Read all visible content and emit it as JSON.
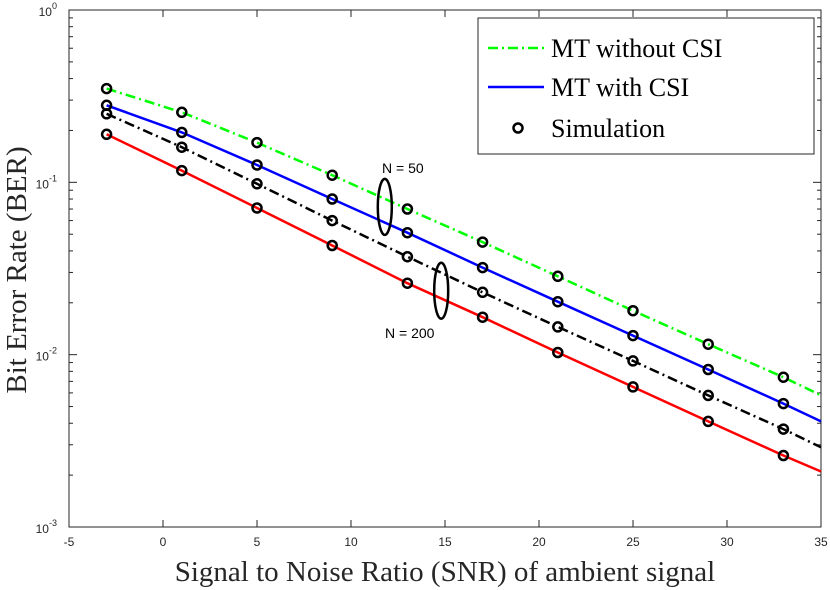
{
  "chart_data": {
    "type": "line",
    "xlabel": "Signal to Noise Ratio (SNR) of ambient signal",
    "ylabel": "Bit Error Rate (BER)",
    "xlim": [
      -5,
      35
    ],
    "ylim": [
      0.001,
      1
    ],
    "yscale": "log",
    "x_ticks": [
      -5,
      0,
      5,
      10,
      15,
      20,
      25,
      30,
      35
    ],
    "y_ticks": [
      {
        "value": 0.001,
        "base": "10",
        "exp": "-3"
      },
      {
        "value": 0.01,
        "base": "10",
        "exp": "-2"
      },
      {
        "value": 0.1,
        "base": "10",
        "exp": "-1"
      },
      {
        "value": 1,
        "base": "10",
        "exp": "0"
      }
    ],
    "legend_position": "top-right",
    "legend": [
      {
        "label": "MT without CSI",
        "color": "#00ff00",
        "style": "dash-dot"
      },
      {
        "label": "MT with CSI",
        "color": "#0000ff",
        "style": "solid"
      },
      {
        "label": "Simulation",
        "color": "#000000",
        "style": "marker"
      }
    ],
    "series": [
      {
        "name": "MT without CSI (N = 50)",
        "color": "#00ff00",
        "style": "dash-dot",
        "x": [
          -3,
          1,
          5,
          9,
          13,
          17,
          21,
          25,
          29,
          33,
          35
        ],
        "y": [
          0.35,
          0.255,
          0.17,
          0.11,
          0.07,
          0.045,
          0.0285,
          0.018,
          0.0115,
          0.0074,
          0.0058
        ]
      },
      {
        "name": "MT with CSI (N = 50)",
        "color": "#0000ff",
        "style": "solid",
        "x": [
          -3,
          1,
          5,
          9,
          13,
          17,
          21,
          25,
          29,
          33,
          35
        ],
        "y": [
          0.28,
          0.195,
          0.126,
          0.08,
          0.051,
          0.032,
          0.0203,
          0.0129,
          0.0082,
          0.0052,
          0.0041
        ]
      },
      {
        "name": "MT without CSI (N = 200)",
        "color": "#000000",
        "style": "dash-dot",
        "x": [
          -3,
          1,
          5,
          9,
          13,
          17,
          21,
          25,
          29,
          33,
          35
        ],
        "y": [
          0.25,
          0.16,
          0.098,
          0.06,
          0.037,
          0.023,
          0.0145,
          0.0092,
          0.0058,
          0.0037,
          0.0029
        ]
      },
      {
        "name": "MT with CSI (N = 200)",
        "color": "#ff0000",
        "style": "solid",
        "x": [
          -3,
          1,
          5,
          9,
          13,
          17,
          21,
          25,
          29,
          33,
          35
        ],
        "y": [
          0.19,
          0.117,
          0.071,
          0.043,
          0.026,
          0.0165,
          0.0103,
          0.0065,
          0.0041,
          0.0026,
          0.0021
        ]
      }
    ],
    "simulation": {
      "x": [
        -3,
        1,
        5,
        9,
        13,
        17,
        21,
        25,
        29,
        33
      ],
      "y_sets": [
        [
          0.35,
          0.255,
          0.17,
          0.11,
          0.07,
          0.045,
          0.0285,
          0.018,
          0.0115,
          0.0074
        ],
        [
          0.28,
          0.195,
          0.126,
          0.08,
          0.051,
          0.032,
          0.0203,
          0.0129,
          0.0082,
          0.0052
        ],
        [
          0.25,
          0.16,
          0.098,
          0.06,
          0.037,
          0.023,
          0.0145,
          0.0092,
          0.0058,
          0.0037
        ],
        [
          0.19,
          0.117,
          0.071,
          0.043,
          0.026,
          0.0165,
          0.0103,
          0.0065,
          0.0041,
          0.0026
        ]
      ]
    },
    "annotations": [
      {
        "text": "N = 50",
        "x": 11.8,
        "y": 0.072
      },
      {
        "text": "N = 200",
        "x": 14.8,
        "y": 0.0235
      }
    ]
  }
}
